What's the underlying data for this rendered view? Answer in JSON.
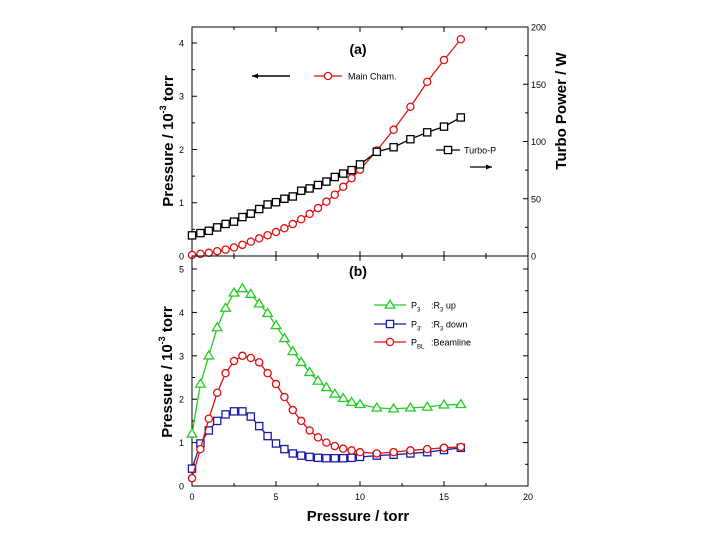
{
  "colors": {
    "green": "#22cc22",
    "blue": "#1a1aaa",
    "red": "#dd1111",
    "black": "#000000"
  },
  "chart_data": [
    {
      "type": "line",
      "panel_label": "(a)",
      "xlabel": "",
      "ylabel_left": {
        "main": "Pressure / 10",
        "sup": "-3",
        "tail": " torr"
      },
      "ylabel_right": "Turbo Power / W",
      "xlim": [
        0,
        20
      ],
      "ylim_left": [
        0,
        4.3
      ],
      "ylim_right": [
        0,
        200
      ],
      "yticks_left": [
        "0",
        "1",
        "2",
        "3",
        "4"
      ],
      "yticks_right": [
        "0",
        "50",
        "100",
        "150",
        "200"
      ],
      "series": [
        {
          "name": "Main Cham.",
          "axis": "left",
          "color": "#dd1111",
          "marker": "circle",
          "x": [
            0,
            0.5,
            1,
            1.5,
            2,
            2.5,
            3,
            3.5,
            4,
            4.5,
            5,
            5.5,
            6,
            6.5,
            7,
            7.5,
            8,
            8.5,
            9,
            9.5,
            10,
            11,
            12,
            13,
            14,
            15,
            16
          ],
          "y": [
            0.02,
            0.04,
            0.06,
            0.09,
            0.12,
            0.16,
            0.21,
            0.27,
            0.33,
            0.39,
            0.45,
            0.52,
            0.6,
            0.69,
            0.79,
            0.9,
            1.02,
            1.15,
            1.3,
            1.46,
            1.62,
            1.98,
            2.37,
            2.8,
            3.27,
            3.68,
            4.07
          ]
        },
        {
          "name": "Turbo-P",
          "axis": "right",
          "color": "#000000",
          "marker": "square",
          "x": [
            0,
            0.5,
            1,
            1.5,
            2,
            2.5,
            3,
            3.5,
            4,
            4.5,
            5,
            5.5,
            6,
            6.5,
            7,
            7.5,
            8,
            8.5,
            9,
            9.5,
            10,
            11,
            12,
            13,
            14,
            15,
            16
          ],
          "y": [
            18,
            20,
            22,
            25,
            28,
            30,
            34,
            37,
            41,
            45,
            47,
            50,
            52,
            57,
            59,
            62,
            65,
            69,
            72,
            75,
            80,
            91,
            95,
            102,
            108,
            113,
            121
          ]
        }
      ],
      "legend": [
        {
          "label": "Main Cham.",
          "series": "Main Cham."
        },
        {
          "label": "Turbo-P",
          "series": "Turbo-P"
        }
      ]
    },
    {
      "type": "line",
      "panel_label": "(b)",
      "xlabel": "Pressure / torr",
      "ylabel_left": {
        "main": "Pressure / 10",
        "sup": "-3",
        "tail": " torr"
      },
      "xlim": [
        0,
        20
      ],
      "ylim_left": [
        0,
        5.3
      ],
      "xticks": [
        "0",
        "5",
        "10",
        "15",
        "20"
      ],
      "yticks_left": [
        "0",
        "1",
        "2",
        "3",
        "4",
        "5"
      ],
      "series": [
        {
          "name": "P3",
          "color": "#22cc22",
          "marker": "triangle",
          "x": [
            0,
            0.5,
            1,
            1.5,
            2,
            2.5,
            3,
            3.5,
            4,
            4.5,
            5,
            5.5,
            6,
            6.5,
            7,
            7.5,
            8,
            8.5,
            9,
            9.5,
            10,
            11,
            12,
            13,
            14,
            15,
            16
          ],
          "y": [
            1.2,
            2.35,
            3.0,
            3.65,
            4.1,
            4.45,
            4.55,
            4.42,
            4.2,
            3.98,
            3.7,
            3.4,
            3.1,
            2.85,
            2.62,
            2.42,
            2.27,
            2.12,
            2.02,
            1.93,
            1.88,
            1.8,
            1.78,
            1.8,
            1.82,
            1.87,
            1.88
          ]
        },
        {
          "name": "P3'",
          "color": "#1a1aaa",
          "marker": "square",
          "x": [
            0,
            0.5,
            1,
            1.5,
            2,
            2.5,
            3,
            3.5,
            4,
            4.5,
            5,
            5.5,
            6,
            6.5,
            7,
            7.5,
            8,
            8.5,
            9,
            9.5,
            10,
            11,
            12,
            13,
            14,
            15,
            16
          ],
          "y": [
            0.4,
            0.98,
            1.28,
            1.5,
            1.65,
            1.72,
            1.72,
            1.6,
            1.38,
            1.15,
            0.98,
            0.85,
            0.75,
            0.7,
            0.67,
            0.65,
            0.64,
            0.64,
            0.64,
            0.65,
            0.67,
            0.7,
            0.72,
            0.75,
            0.78,
            0.83,
            0.88
          ]
        },
        {
          "name": "PBL",
          "color": "#dd1111",
          "marker": "circle",
          "x": [
            0,
            0.5,
            1,
            1.5,
            2,
            2.5,
            3,
            3.5,
            4,
            4.5,
            5,
            5.5,
            6,
            6.5,
            7,
            7.5,
            8,
            8.5,
            9,
            9.5,
            10,
            11,
            12,
            13,
            14,
            15,
            16
          ],
          "y": [
            0.18,
            0.85,
            1.55,
            2.15,
            2.6,
            2.88,
            3.0,
            2.95,
            2.85,
            2.6,
            2.35,
            2.05,
            1.75,
            1.5,
            1.28,
            1.12,
            1.0,
            0.92,
            0.86,
            0.82,
            0.78,
            0.75,
            0.78,
            0.82,
            0.85,
            0.88,
            0.9
          ]
        }
      ],
      "legend": [
        {
          "series": "P3",
          "name": "P",
          "sub": "3",
          "desc": ":R",
          "desc_sub": "3",
          "desc_tail": " up"
        },
        {
          "series": "P3'",
          "name": "P",
          "sub": "3'",
          "desc": ":R",
          "desc_sub": "3",
          "desc_tail": " down"
        },
        {
          "series": "PBL",
          "name": "P",
          "sub": "BL",
          "desc": ":Beamline",
          "desc_sub": "",
          "desc_tail": ""
        }
      ]
    }
  ]
}
